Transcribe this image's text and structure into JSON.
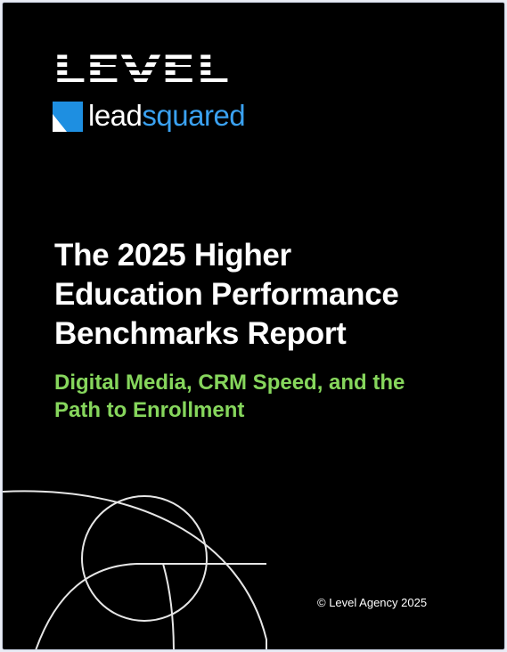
{
  "logos": {
    "level": "LEVEL",
    "leadsquared_lead": "lead",
    "leadsquared_squared": "squared",
    "level_icon": "level-striped-wordmark",
    "leadsquared_icon": "leadsquared-square-mark"
  },
  "cover": {
    "title_lines": [
      "The 2025 Higher",
      "Education Performance",
      "Benchmarks Report"
    ],
    "subtitle_lines": [
      "Digital Media, CRM Speed, and the",
      "Path to Enrollment"
    ],
    "copyright": "© Level Agency 2025"
  },
  "colors": {
    "background": "#000000",
    "subtitle": "#86d65c",
    "leadsquared_blue": "#1e8fe1"
  }
}
